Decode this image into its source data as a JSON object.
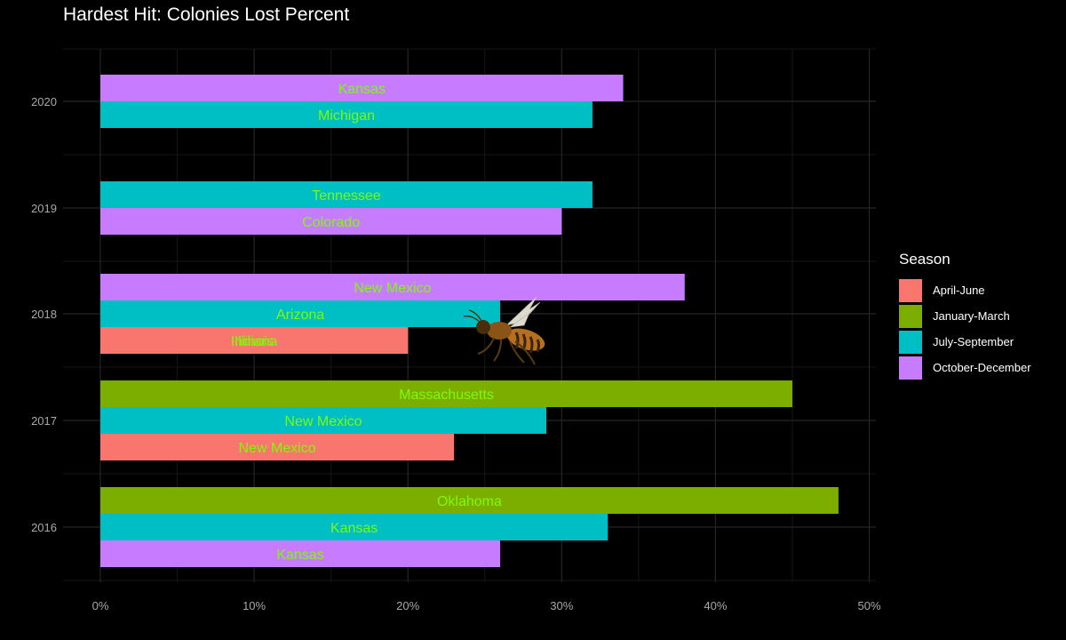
{
  "chart_data": {
    "type": "bar",
    "orientation": "horizontal",
    "title": "Hardest Hit: Colonies Lost Percent",
    "xlabel": "",
    "ylabel": "",
    "xlim": [
      0,
      50
    ],
    "x_ticks": [
      0,
      10,
      20,
      30,
      40,
      50
    ],
    "x_tick_labels": [
      "0%",
      "10%",
      "20%",
      "30%",
      "40%",
      "50%"
    ],
    "categories": [
      "2016",
      "2017",
      "2018",
      "2019",
      "2020"
    ],
    "grid": true,
    "legend": {
      "title": "Season",
      "position": "right",
      "entries": [
        {
          "name": "April-June",
          "color": "#F8766D"
        },
        {
          "name": "January-March",
          "color": "#7CAE00"
        },
        {
          "name": "July-September",
          "color": "#00BFC4"
        },
        {
          "name": "October-December",
          "color": "#C77CFF"
        }
      ]
    },
    "label_color": "#7CFC00",
    "bars": [
      {
        "year": "2016",
        "season": "January-March",
        "state": "Oklahoma",
        "value": 48
      },
      {
        "year": "2016",
        "season": "July-September",
        "state": "Kansas",
        "value": 33
      },
      {
        "year": "2016",
        "season": "October-December",
        "state": "Kansas",
        "value": 26
      },
      {
        "year": "2017",
        "season": "January-March",
        "state": "Massachusetts",
        "value": 45
      },
      {
        "year": "2017",
        "season": "July-September",
        "state": "New Mexico",
        "value": 29
      },
      {
        "year": "2017",
        "season": "April-June",
        "state": "New Mexico",
        "value": 23
      },
      {
        "year": "2018",
        "season": "October-December",
        "state": "New Mexico",
        "value": 38
      },
      {
        "year": "2018",
        "season": "July-September",
        "state": "Arizona",
        "value": 26
      },
      {
        "year": "2018",
        "season": "April-June",
        "state": "Illinois",
        "value": 20
      },
      {
        "year": "2018",
        "season": "April-June",
        "state": "Indiana",
        "value": 20
      },
      {
        "year": "2019",
        "season": "July-September",
        "state": "Tennessee",
        "value": 32
      },
      {
        "year": "2019",
        "season": "October-December",
        "state": "Colorado",
        "value": 30
      },
      {
        "year": "2020",
        "season": "October-December",
        "state": "Kansas",
        "value": 34
      },
      {
        "year": "2020",
        "season": "July-September",
        "state": "Michigan",
        "value": 32
      }
    ]
  }
}
